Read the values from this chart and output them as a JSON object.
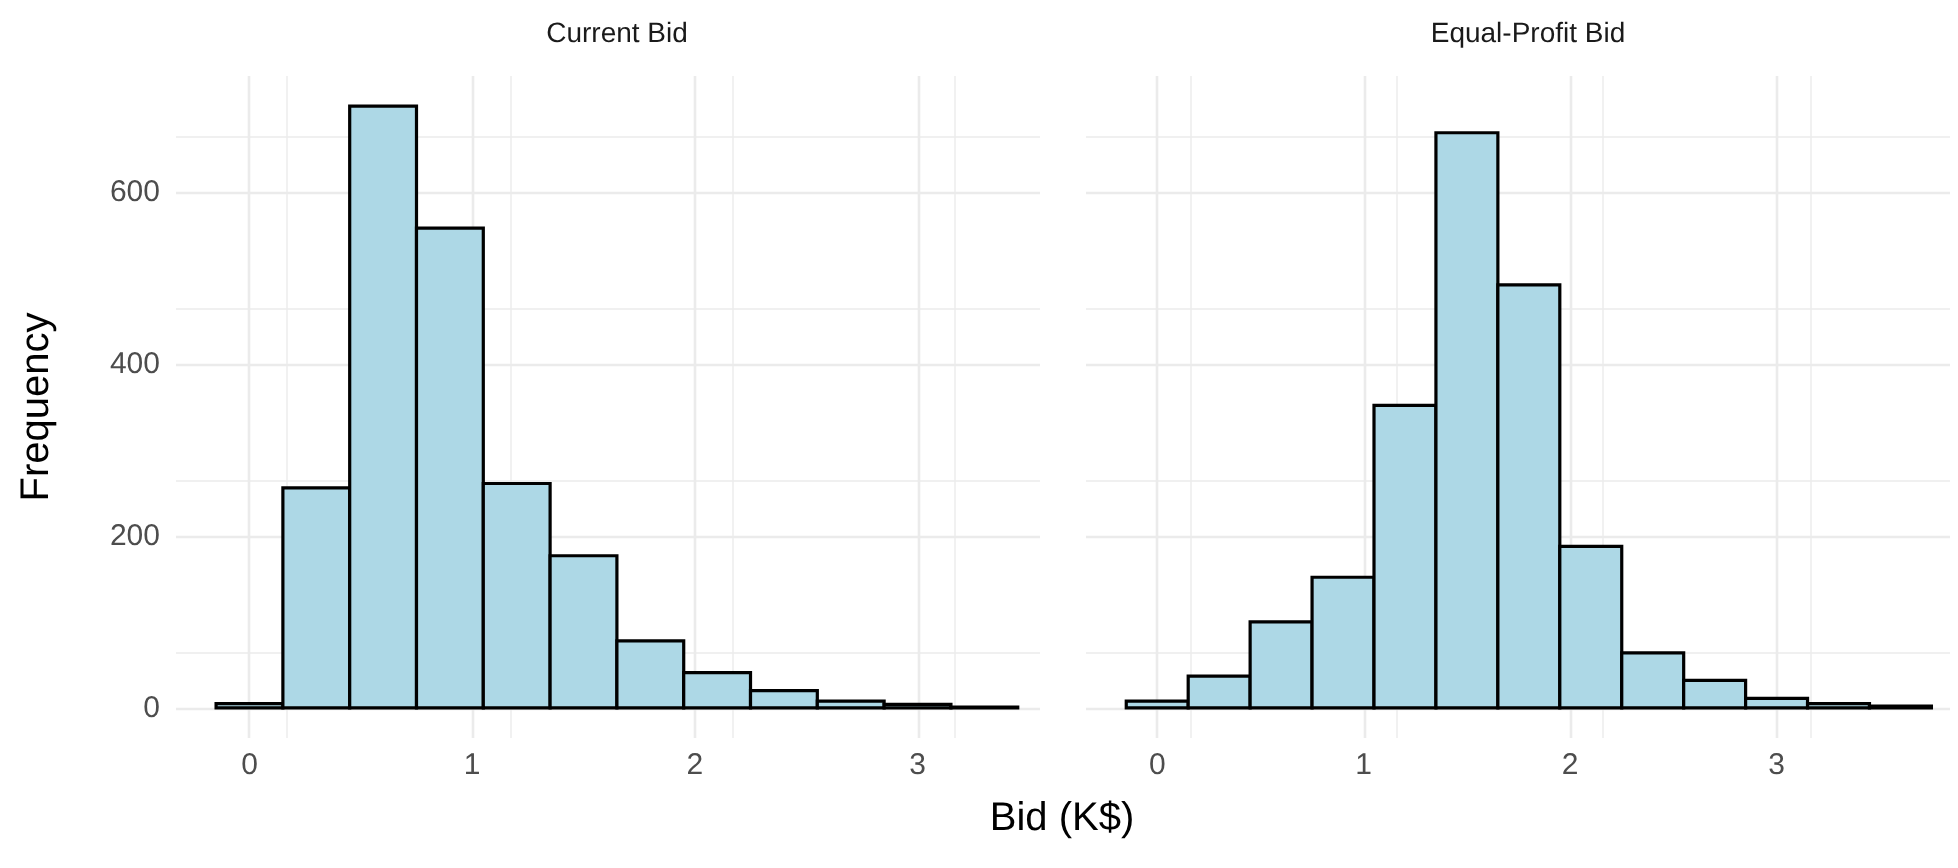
{
  "chart_data": [
    {
      "type": "histogram",
      "title": "Current Bid",
      "xlabel": "Bid (K$)",
      "ylabel": "Frequency",
      "color": "#add8e6",
      "bins": [
        -0.15,
        0.15,
        0.45,
        0.75,
        1.05,
        1.35,
        1.65,
        1.95,
        2.25,
        2.55,
        2.85,
        3.15,
        3.45
      ],
      "values": [
        5,
        256,
        700,
        558,
        261,
        177,
        78,
        41,
        20,
        8,
        4,
        1
      ],
      "xlim": [
        -0.33,
        3.55
      ],
      "xticks": [
        0,
        1,
        2,
        3
      ],
      "ylim": [
        -35,
        735
      ],
      "yticks": [
        0,
        200,
        400,
        600
      ],
      "grid": true
    },
    {
      "type": "histogram",
      "title": "Equal-Profit Bid",
      "color": "#add8e6",
      "bins": [
        -0.15,
        0.15,
        0.45,
        0.75,
        1.05,
        1.35,
        1.65,
        1.95,
        2.25,
        2.55,
        2.85,
        3.15,
        3.45,
        3.75
      ],
      "values": [
        8,
        37,
        100,
        152,
        352,
        669,
        492,
        188,
        64,
        32,
        11,
        5,
        2
      ],
      "xlim": [
        -0.345,
        3.84
      ],
      "xticks": [
        0,
        1,
        2,
        3
      ],
      "ylim": [
        -35,
        735
      ],
      "yticks": [
        0,
        200,
        400,
        600
      ],
      "grid": true,
      "tick_labels": "x"
    }
  ]
}
